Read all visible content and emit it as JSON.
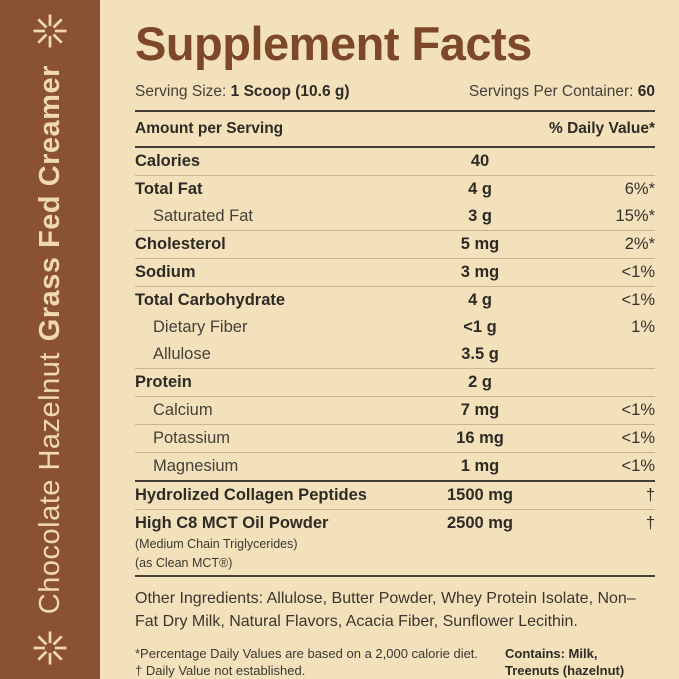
{
  "colors": {
    "background_cream": "#f2e1bb",
    "sidebar_brown": "#8a5231",
    "sidebar_text_cream": "#f0d9ae",
    "title_brown": "#7c4827",
    "text_dark": "#2e2b25"
  },
  "sidebar": {
    "flavor": "Chocolate Hazelnut",
    "product": "Grass Fed Creamer",
    "star_icon": "eight-point-asterisk"
  },
  "header": {
    "title": "Supplement Facts",
    "serving_size_label": "Serving Size:",
    "serving_size_value": "1 Scoop (10.6 g)",
    "servings_per_container_label": "Servings Per Container:",
    "servings_per_container_value": "60"
  },
  "table": {
    "col_amount_header": "Amount per Serving",
    "col_dv_header": "% Daily Value*",
    "rows": [
      {
        "name": "Calories",
        "amount": "40",
        "dv": "",
        "bold": true,
        "indent": false,
        "sep": "light"
      },
      {
        "name": "Total Fat",
        "amount": "4 g",
        "dv": "6%*",
        "bold": true,
        "indent": false,
        "sep": "none"
      },
      {
        "name": "Saturated Fat",
        "amount": "3 g",
        "dv": "15%*",
        "bold": false,
        "indent": true,
        "sep": "light"
      },
      {
        "name": "Cholesterol",
        "amount": "5 mg",
        "dv": "2%*",
        "bold": true,
        "indent": false,
        "sep": "light"
      },
      {
        "name": "Sodium",
        "amount": "3 mg",
        "dv": "<1%",
        "bold": true,
        "indent": false,
        "sep": "light"
      },
      {
        "name": "Total Carbohydrate",
        "amount": "4 g",
        "dv": "<1%",
        "bold": true,
        "indent": false,
        "sep": "none"
      },
      {
        "name": "Dietary Fiber",
        "amount": "<1 g",
        "dv": "1%",
        "bold": false,
        "indent": true,
        "sep": "none"
      },
      {
        "name": "Allulose",
        "amount": "3.5 g",
        "dv": "",
        "bold": false,
        "indent": true,
        "sep": "light"
      },
      {
        "name": "Protein",
        "amount": "2 g",
        "dv": "",
        "bold": true,
        "indent": false,
        "sep": "light"
      },
      {
        "name": "Calcium",
        "amount": "7 mg",
        "dv": "<1%",
        "bold": false,
        "indent": true,
        "sep": "light"
      },
      {
        "name": "Potassium",
        "amount": "16 mg",
        "dv": "<1%",
        "bold": false,
        "indent": true,
        "sep": "light"
      },
      {
        "name": "Magnesium",
        "amount": "1 mg",
        "dv": "<1%",
        "bold": false,
        "indent": true,
        "sep": "dark"
      },
      {
        "name": "Hydrolized Collagen Peptides",
        "amount": "1500 mg",
        "dv": "†",
        "bold": true,
        "indent": false,
        "sep": "light"
      },
      {
        "name": "High C8 MCT Oil Powder",
        "sublines": [
          "(Medium Chain Triglycerides)",
          "(as Clean MCT®)"
        ],
        "amount": "2500 mg",
        "dv": "†",
        "bold": true,
        "indent": false,
        "sep": "dark"
      }
    ]
  },
  "other_ingredients": "Other Ingredients: Allulose, Butter Powder, Whey Protein Isolate, Non–Fat Dry Milk, Natural Flavors, Acacia Fiber, Sunflower Lecithin.",
  "footnotes": {
    "daily_value_note": "*Percentage Daily Values are based on a 2,000 calorie diet.",
    "dagger_note": "† Daily Value not established.",
    "contains_line1": "Contains: Milk,",
    "contains_line2": "Treenuts (hazelnut)"
  }
}
